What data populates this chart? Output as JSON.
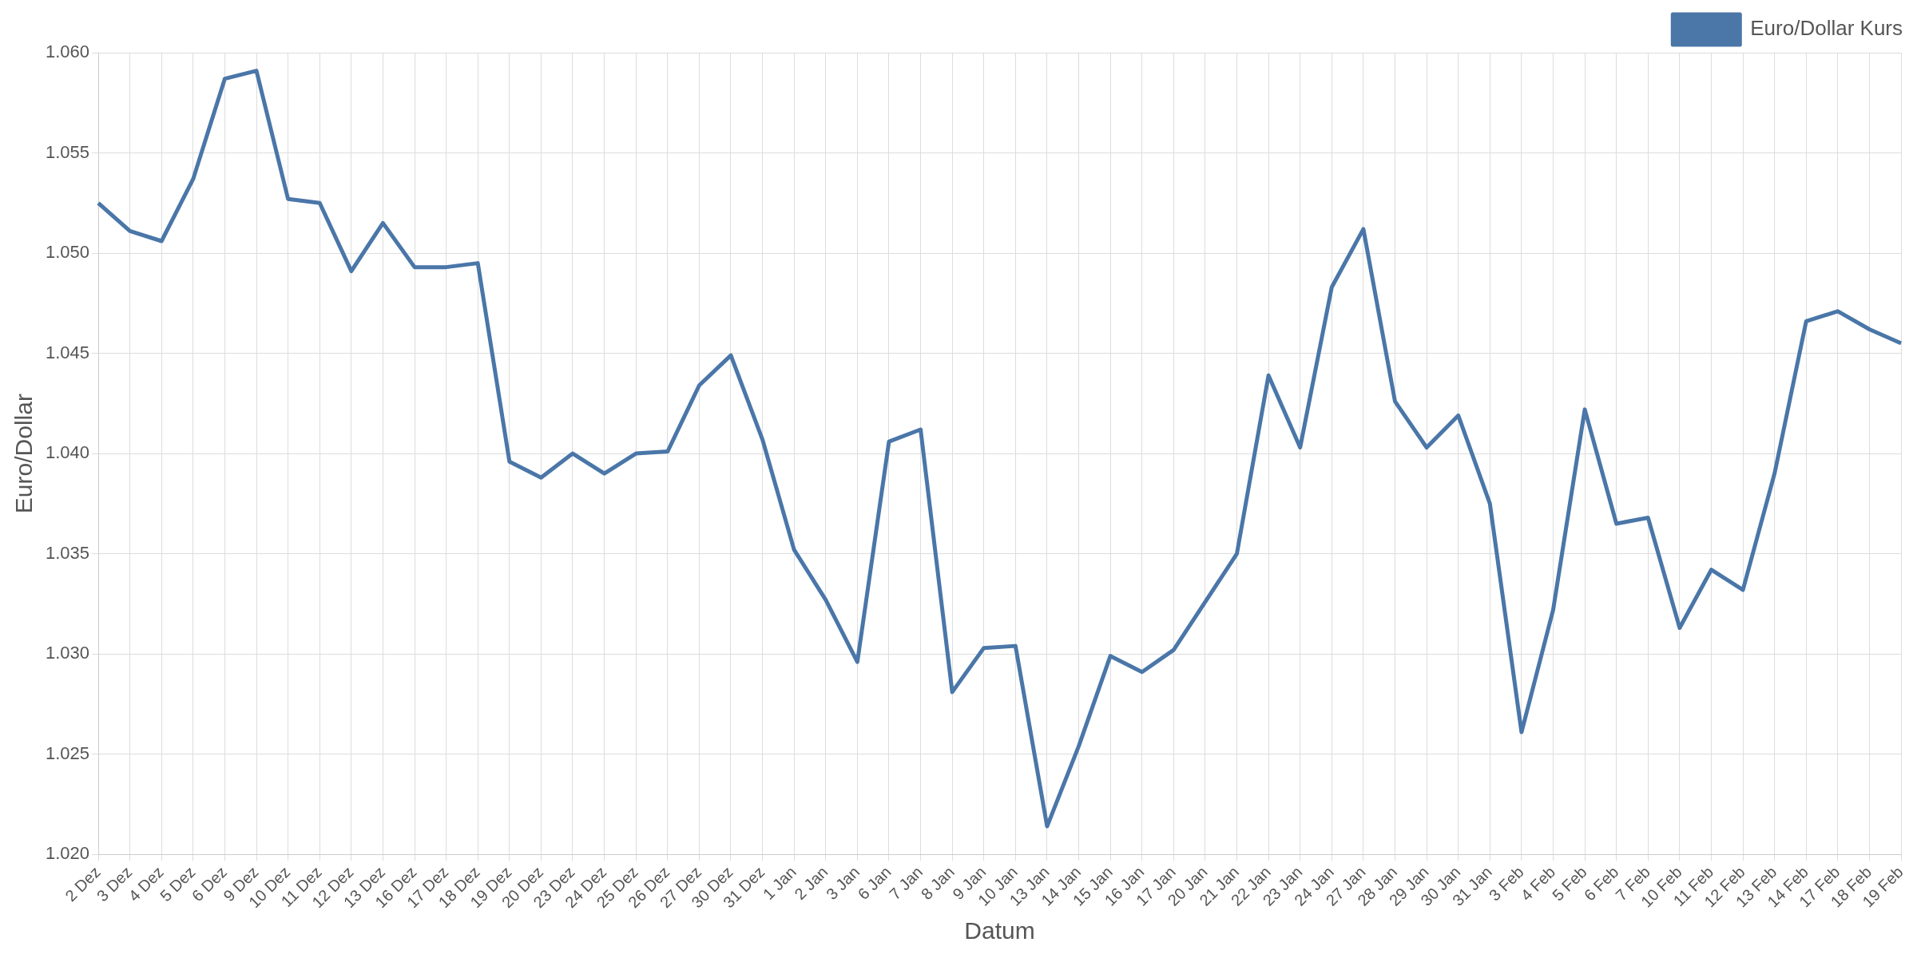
{
  "chart_data": {
    "type": "line",
    "xlabel": "Datum",
    "ylabel": "Euro/Dollar",
    "categories": [
      "2 Dez",
      "3 Dez",
      "4 Dez",
      "5 Dez",
      "6 Dez",
      "9 Dez",
      "10 Dez",
      "11 Dez",
      "12 Dez",
      "13 Dez",
      "16 Dez",
      "17 Dez",
      "18 Dez",
      "19 Dez",
      "20 Dez",
      "23 Dez",
      "24 Dez",
      "25 Dez",
      "26 Dez",
      "27 Dez",
      "30 Dez",
      "31 Dez",
      "1 Jan",
      "2 Jan",
      "3 Jan",
      "6 Jan",
      "7 Jan",
      "8 Jan",
      "9 Jan",
      "10 Jan",
      "13 Jan",
      "14 Jan",
      "15 Jan",
      "16 Jan",
      "17 Jan",
      "20 Jan",
      "21 Jan",
      "22 Jan",
      "23 Jan",
      "24 Jan",
      "27 Jan",
      "28 Jan",
      "29 Jan",
      "30 Jan",
      "31 Jan",
      "3 Feb",
      "4 Feb",
      "5 Feb",
      "6 Feb",
      "7 Feb",
      "10 Feb",
      "11 Feb",
      "12 Feb",
      "13 Feb",
      "14 Feb",
      "17 Feb",
      "18 Feb",
      "19 Feb"
    ],
    "series": [
      {
        "name": "Euro/Dollar Kurs",
        "color": "#4a76a8",
        "values": [
          1.0525,
          1.0511,
          1.0506,
          1.0537,
          1.0587,
          1.0591,
          1.0527,
          1.0525,
          1.0491,
          1.0515,
          1.0493,
          1.0493,
          1.0495,
          1.0396,
          1.0388,
          1.04,
          1.039,
          1.04,
          1.0401,
          1.0434,
          1.0449,
          1.0407,
          1.0352,
          1.0327,
          1.0296,
          1.0406,
          1.0412,
          1.0281,
          1.0303,
          1.0304,
          1.0214,
          1.0254,
          1.0299,
          1.0291,
          1.0302,
          1.0326,
          1.035,
          1.0439,
          1.0403,
          1.0483,
          1.0512,
          1.0426,
          1.0403,
          1.0419,
          1.0375,
          1.0261,
          1.0322,
          1.0422,
          1.0365,
          1.0368,
          1.0313,
          1.0342,
          1.0332,
          1.039,
          1.0466,
          1.0471,
          1.0462,
          1.0455
        ]
      }
    ],
    "ylim": [
      1.02,
      1.06
    ],
    "yticks": [
      {
        "value": 1.02,
        "label": "1.020"
      },
      {
        "value": 1.025,
        "label": "1.025"
      },
      {
        "value": 1.03,
        "label": "1.030"
      },
      {
        "value": 1.035,
        "label": "1.035"
      },
      {
        "value": 1.04,
        "label": "1.040"
      },
      {
        "value": 1.045,
        "label": "1.045"
      },
      {
        "value": 1.05,
        "label": "1.050"
      },
      {
        "value": 1.055,
        "label": "1.055"
      },
      {
        "value": 1.06,
        "label": "1.060"
      }
    ],
    "grid": true,
    "legend": "top right",
    "marker": "none",
    "line_style": "solid"
  }
}
